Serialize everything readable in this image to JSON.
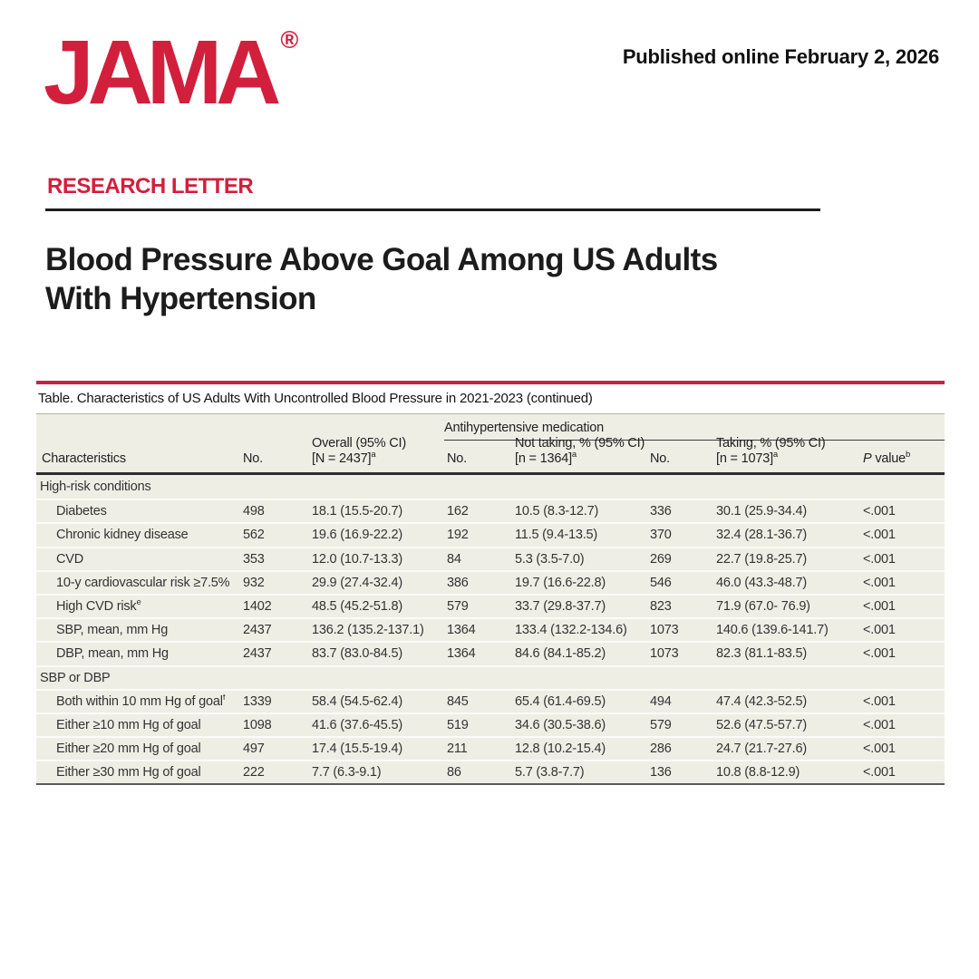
{
  "header": {
    "logo": "JAMA",
    "logo_registered": "®",
    "published": "Published online February 2, 2026"
  },
  "article": {
    "kicker": "RESEARCH LETTER",
    "title_line1": "Blood Pressure Above Goal Among US Adults",
    "title_line2": "With Hypertension"
  },
  "colors": {
    "jama_red": "#d21f3c",
    "table_top_rule_red": "#c22447",
    "table_background": "#efeee5",
    "text": "#333333"
  },
  "table": {
    "caption": "Table. Characteristics of US Adults With Uncontrolled Blood Pressure in 2021-2023 (continued)",
    "spanner": "Antihypertensive medication",
    "columns": [
      {
        "label": "Characteristics"
      },
      {
        "label": "No."
      },
      {
        "line1": "Overall (95% CI)",
        "line2": "[N = 2437]",
        "sup": "a"
      },
      {
        "label": "No."
      },
      {
        "line1": "Not taking, % (95% CI)",
        "line2": "[n = 1364]",
        "sup": "a"
      },
      {
        "label": "No."
      },
      {
        "line1": "Taking, % (95% CI)",
        "line2": "[n = 1073]",
        "sup": "a"
      },
      {
        "prefix_italic": "P",
        "label": " value",
        "sup": "b"
      }
    ],
    "rows": [
      {
        "type": "section",
        "label": "High-risk conditions"
      },
      {
        "type": "data",
        "label": "Diabetes",
        "values": [
          "498",
          "18.1 (15.5-20.7)",
          "162",
          "10.5 (8.3-12.7)",
          "336",
          "30.1 (25.9-34.4)",
          "<.001"
        ]
      },
      {
        "type": "data",
        "label": "Chronic kidney disease",
        "values": [
          "562",
          "19.6 (16.9-22.2)",
          "192",
          "11.5 (9.4-13.5)",
          "370",
          "32.4 (28.1-36.7)",
          "<.001"
        ]
      },
      {
        "type": "data",
        "label": "CVD",
        "values": [
          "353",
          "12.0 (10.7-13.3)",
          "84",
          "5.3 (3.5-7.0)",
          "269",
          "22.7 (19.8-25.7)",
          "<.001"
        ]
      },
      {
        "type": "data",
        "label": "10-y cardiovascular risk ≥7.5%",
        "values": [
          "932",
          "29.9 (27.4-32.4)",
          "386",
          "19.7 (16.6-22.8)",
          "546",
          "46.0 (43.3-48.7)",
          "<.001"
        ]
      },
      {
        "type": "data",
        "label": "High CVD risk",
        "sup": "e",
        "values": [
          "1402",
          "48.5 (45.2-51.8)",
          "579",
          "33.7 (29.8-37.7)",
          "823",
          "71.9 (67.0- 76.9)",
          "<.001"
        ]
      },
      {
        "type": "data",
        "label": "SBP, mean, mm Hg",
        "values": [
          "2437",
          "136.2 (135.2-137.1)",
          "1364",
          "133.4 (132.2-134.6)",
          "1073",
          "140.6 (139.6-141.7)",
          "<.001"
        ]
      },
      {
        "type": "data",
        "label": "DBP, mean, mm Hg",
        "values": [
          "2437",
          "83.7 (83.0-84.5)",
          "1364",
          "84.6 (84.1-85.2)",
          "1073",
          "82.3 (81.1-83.5)",
          "<.001"
        ]
      },
      {
        "type": "section",
        "label": "SBP or DBP"
      },
      {
        "type": "data",
        "label": "Both within 10 mm Hg of goal",
        "sup": "f",
        "values": [
          "1339",
          "58.4 (54.5-62.4)",
          "845",
          "65.4 (61.4-69.5)",
          "494",
          "47.4 (42.3-52.5)",
          "<.001"
        ]
      },
      {
        "type": "data",
        "label": "Either ≥10 mm Hg of goal",
        "values": [
          "1098",
          "41.6 (37.6-45.5)",
          "519",
          "34.6 (30.5-38.6)",
          "579",
          "52.6 (47.5-57.7)",
          "<.001"
        ]
      },
      {
        "type": "data",
        "label": "Either ≥20 mm Hg of goal",
        "values": [
          "497",
          "17.4 (15.5-19.4)",
          "211",
          "12.8 (10.2-15.4)",
          "286",
          "24.7 (21.7-27.6)",
          "<.001"
        ]
      },
      {
        "type": "data",
        "label": "Either ≥30 mm Hg of goal",
        "values": [
          "222",
          "7.7 (6.3-9.1)",
          "86",
          "5.7 (3.8-7.7)",
          "136",
          "10.8 (8.8-12.9)",
          "<.001"
        ]
      }
    ]
  }
}
